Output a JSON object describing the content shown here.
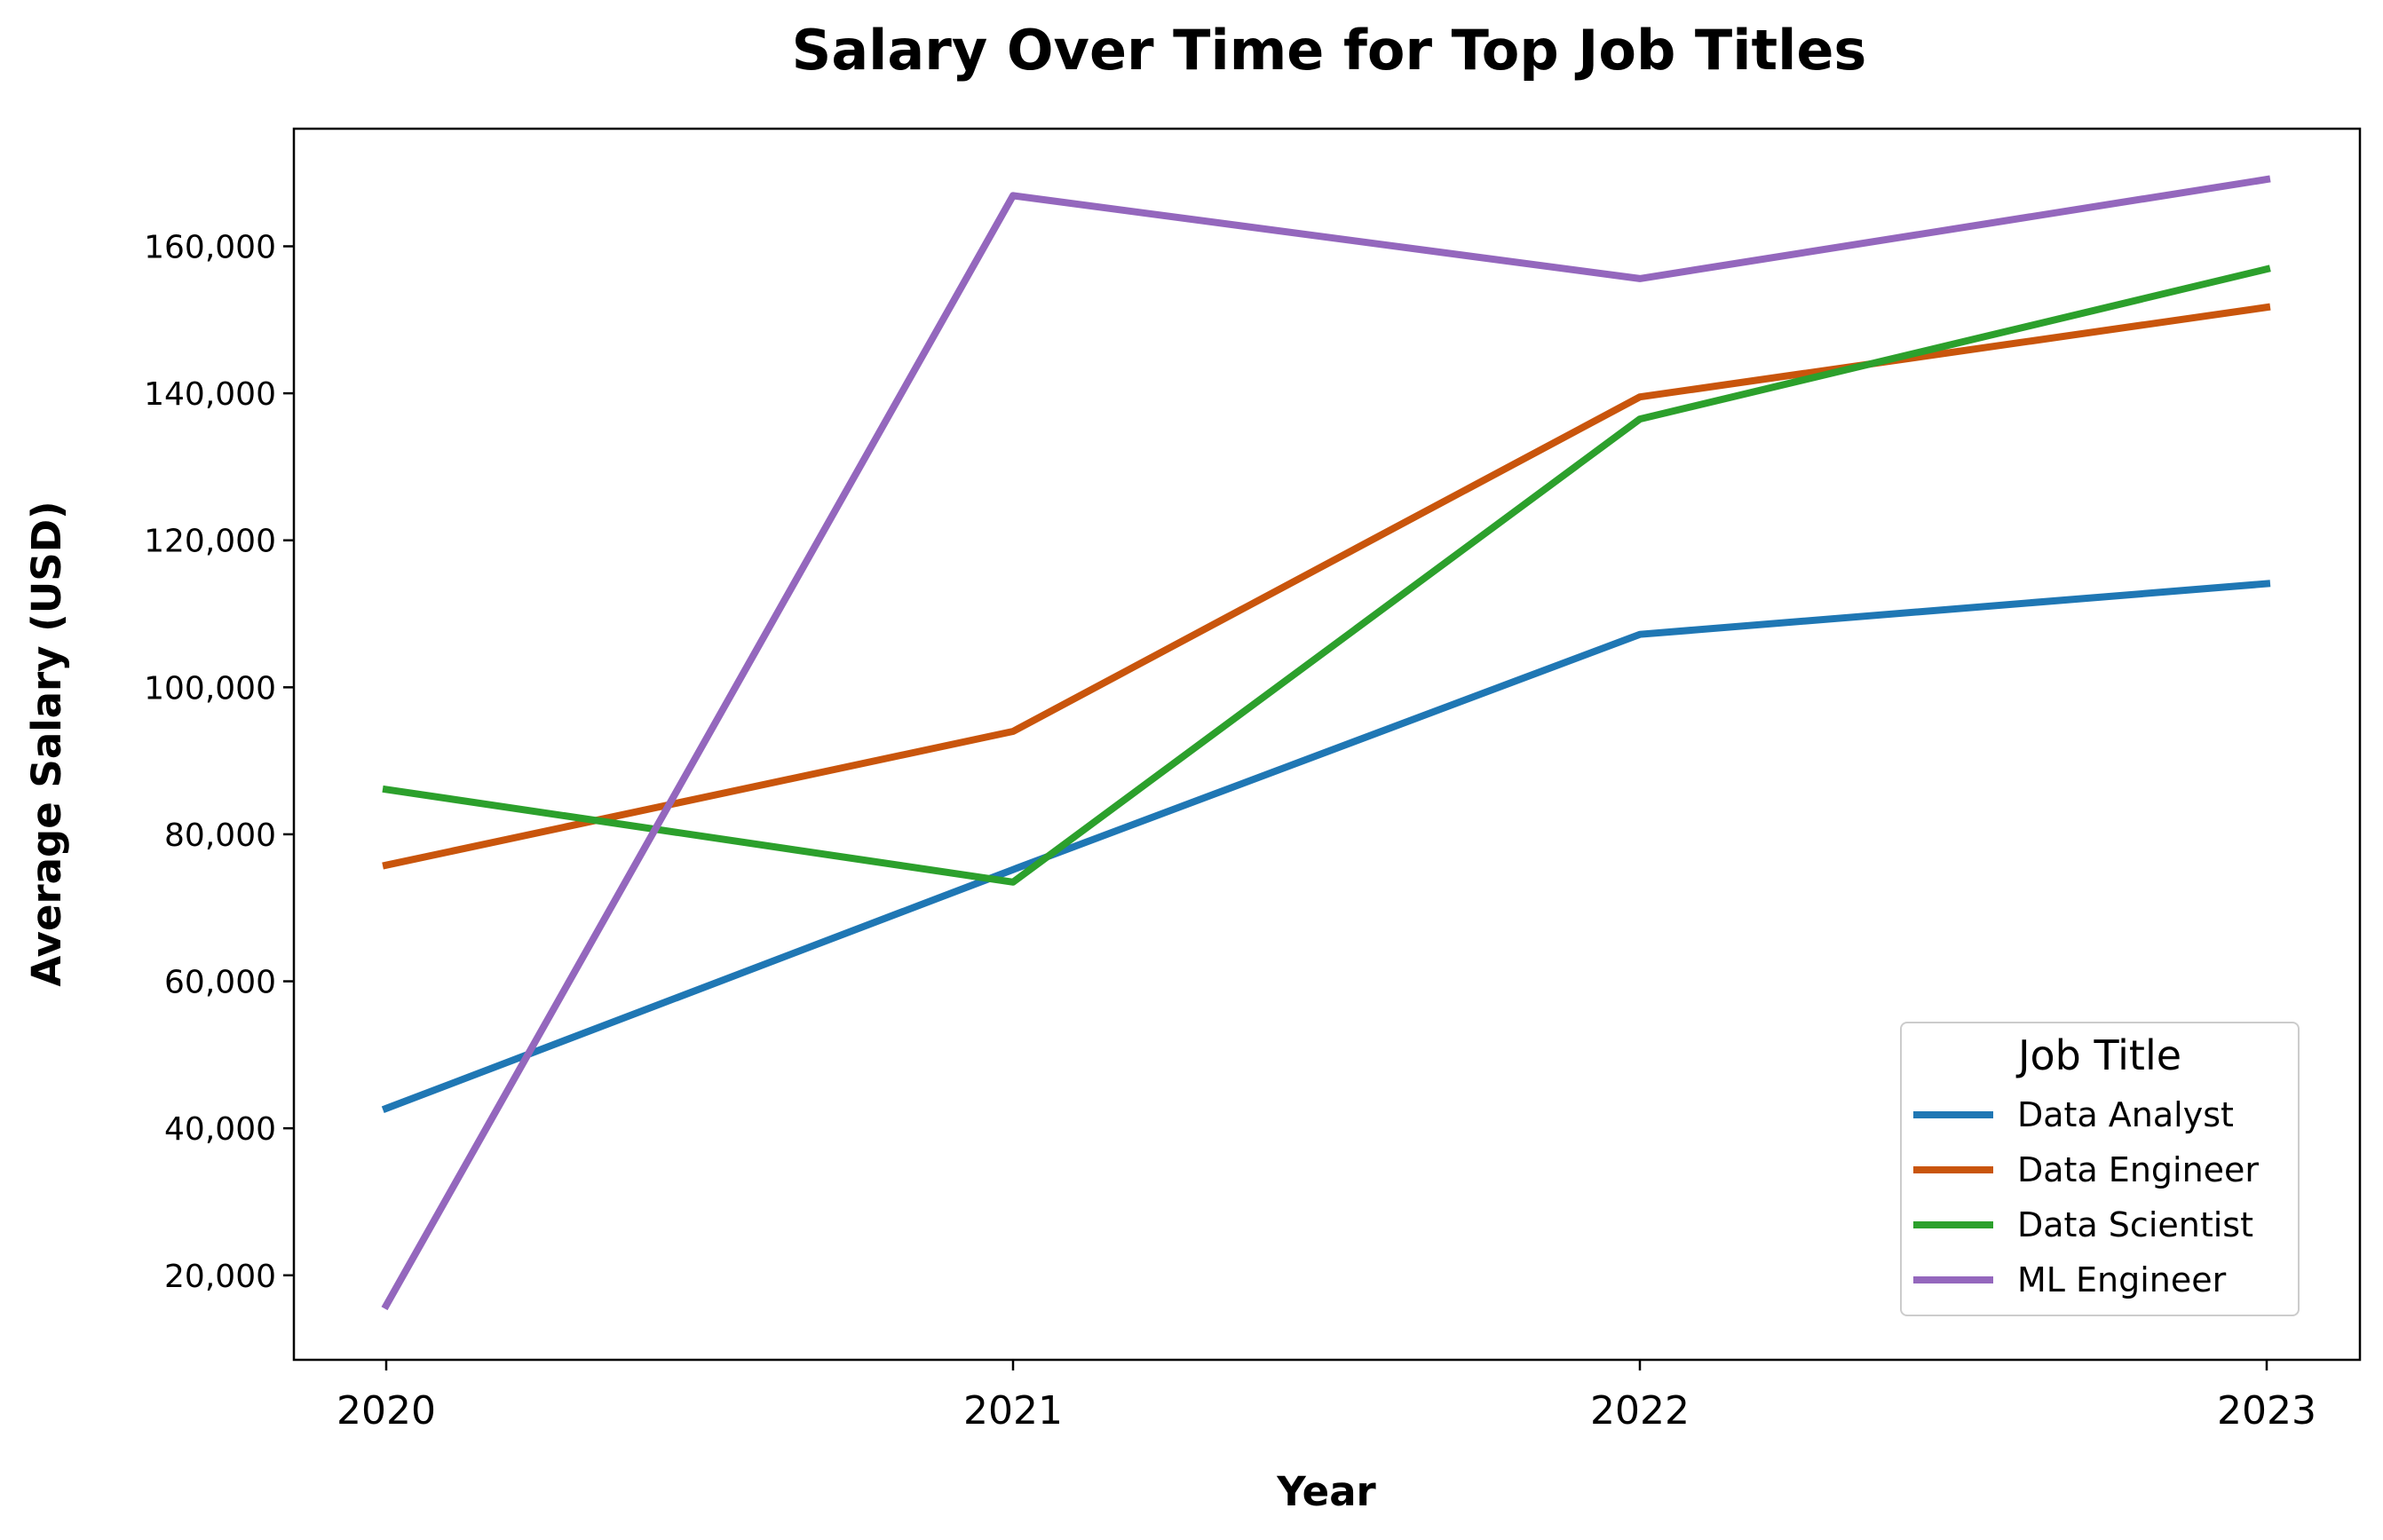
{
  "chart_data": {
    "type": "line",
    "title": "Salary Over Time for Top Job Titles",
    "xlabel": "Year",
    "ylabel": "Average Salary (USD)",
    "x": [
      "2020",
      "2021",
      "2022",
      "2023"
    ],
    "ylim": [
      8500,
      176000
    ],
    "yticks": [
      20000,
      40000,
      60000,
      80000,
      100000,
      120000,
      140000,
      160000
    ],
    "ytick_labels": [
      "20,000",
      "40,000",
      "60,000",
      "80,000",
      "100,000",
      "120,000",
      "140,000",
      "160,000"
    ],
    "grid": false,
    "legend": {
      "title": "Job Title",
      "placement": "lower-right"
    },
    "series": [
      {
        "name": "Data Analyst",
        "color": "#1f77b4",
        "values": [
          42700,
          75200,
          107200,
          114100
        ]
      },
      {
        "name": "Data Engineer",
        "color": "#c9550c",
        "values": [
          75800,
          94000,
          139500,
          151700
        ]
      },
      {
        "name": "Data Scientist",
        "color": "#2ca02c",
        "values": [
          86100,
          73500,
          136500,
          156900
        ]
      },
      {
        "name": "ML Engineer",
        "color": "#9467bd",
        "values": [
          15900,
          166900,
          155600,
          169100
        ]
      }
    ]
  }
}
